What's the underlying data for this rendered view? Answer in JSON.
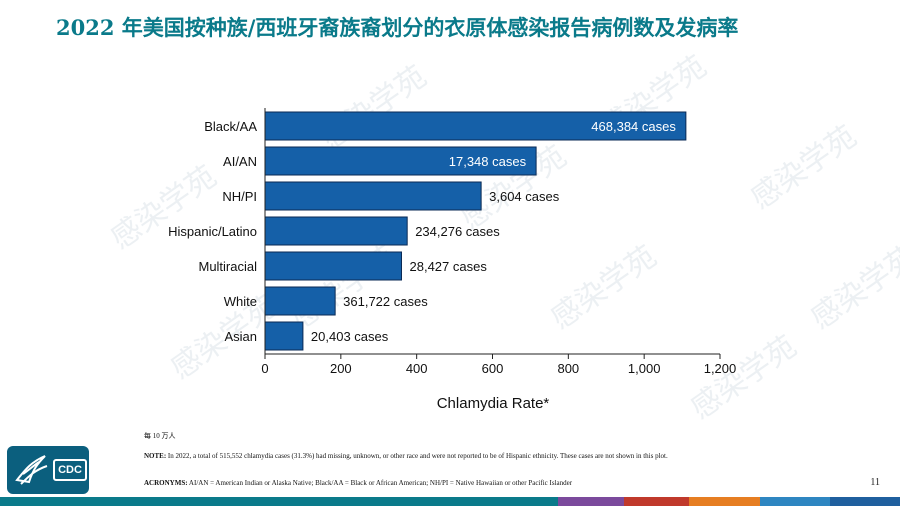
{
  "slide": {
    "title": "2022 年美国按种族/西班牙裔族裔划分的衣原体感染报告病例数及发病率",
    "note_rate": "每 10 万人",
    "note_text_label": "NOTE:",
    "note_text": " In 2022, a total of 515,552 chlamydia cases (31.3%) had missing, unknown, or other race and were not reported to be of Hispanic ethnicity. These cases are not shown in this plot.",
    "acronyms_label": "ACRONYMS:",
    "acronyms_text": " AI/AN = American Indian or Alaska Native; Black/AA = Black or African American; NH/PI = Native Hawaiian or other Pacific Islander",
    "page_number": "11",
    "logo_text": "CDC",
    "watermark": "感染学苑",
    "bottom_bar_colors": [
      "#0a7a8a",
      "#0a7a8a",
      "#0a7a8a",
      "#0a7a8a",
      "#0a7a8a",
      "#0a7a8a",
      "#0a7a8a",
      "#0a7a8a",
      "#7b4a9c",
      "#c0392b",
      "#e67e22",
      "#2e86c1",
      "#1f5f9e"
    ]
  },
  "chart_data": {
    "type": "bar",
    "orientation": "horizontal",
    "categories": [
      "Black/AA",
      "AI/AN",
      "NH/PI",
      "Hispanic/Latino",
      "Multiracial",
      "White",
      "Asian"
    ],
    "values": [
      1110,
      715,
      570,
      375,
      360,
      185,
      100
    ],
    "labels": [
      "468,384 cases",
      "17,348 cases",
      "3,604 cases",
      "234,276 cases",
      "28,427 cases",
      "361,722 cases",
      "20,403 cases"
    ],
    "labels_inside": [
      true,
      true,
      false,
      false,
      false,
      false,
      false
    ],
    "xlabel": "Chlamydia Rate*",
    "ylabel": "",
    "xlim": [
      0,
      1200
    ],
    "xticks": [
      0,
      200,
      400,
      600,
      800,
      1000,
      1200
    ],
    "xtick_labels": [
      "0",
      "200",
      "400",
      "600",
      "800",
      "1,000",
      "1,200"
    ],
    "bar_color": "#1560a8",
    "bar_edge": "#0a2a55",
    "grid": false
  }
}
